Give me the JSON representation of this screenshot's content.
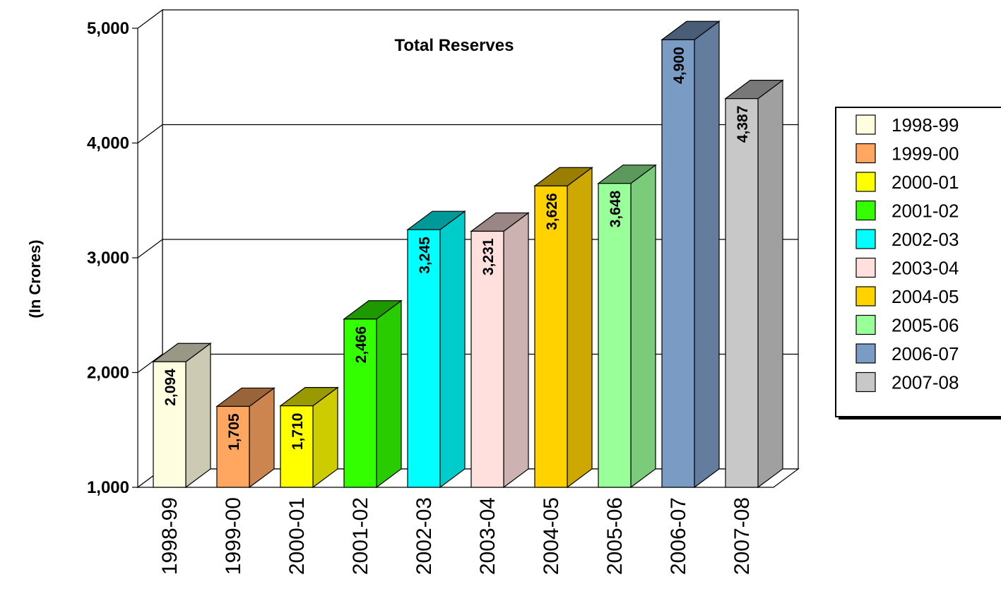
{
  "chart_data": {
    "type": "bar",
    "title": "Total Reserves",
    "ylabel": "(In Crores)",
    "xlabel": "",
    "ylim": [
      1000,
      5000
    ],
    "yticks": [
      1000,
      2000,
      3000,
      4000,
      5000
    ],
    "ytick_labels": [
      "1,000",
      "2,000",
      "3,000",
      "4,000",
      "5,000"
    ],
    "categories": [
      "1998-99",
      "1999-00",
      "2000-01",
      "2001-02",
      "2002-03",
      "2003-04",
      "2004-05",
      "2005-06",
      "2006-07",
      "2007-08"
    ],
    "values": [
      2094,
      1705,
      1710,
      2466,
      3245,
      3231,
      3626,
      3648,
      4900,
      4387
    ],
    "data_labels": [
      "2,094",
      "1,705",
      "1,710",
      "2,466",
      "3,245",
      "3,231",
      "3,626",
      "3,648",
      "4,900",
      "4,387"
    ],
    "colors": [
      "#FFFDE0",
      "#FFA661",
      "#FFFF00",
      "#33FF00",
      "#00FFFF",
      "#FFE0DD",
      "#FFD200",
      "#99FF99",
      "#7A9CC4",
      "#C8C8C8"
    ],
    "grid": true,
    "legend_position": "right",
    "legend": [
      "1998-99",
      "1999-00",
      "2000-01",
      "2001-02",
      "2002-03",
      "2003-04",
      "2004-05",
      "2005-06",
      "2006-07",
      "2007-08"
    ],
    "style": "3d"
  }
}
